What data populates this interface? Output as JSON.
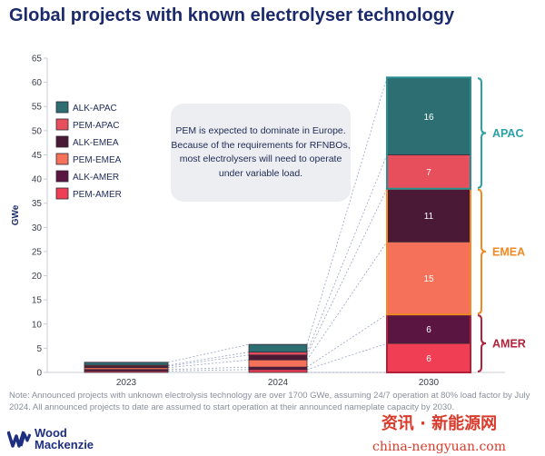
{
  "title": "Global projects with known electrolyser technology",
  "callout": "PEM is expected to dominate in Europe. Because of the requirements for RFNBOs, most electrolysers will need to operate under variable load.",
  "note": "Note: Announced projects with unknown electrolysis technology are over 1700 GWe, assuming 24/7 operation at 80% load factor by July 2024. All announced projects to date are assumed to start operation at their announced nameplate capacity by 2030.",
  "logo": {
    "line1": "Wood",
    "line2": "Mackenzie"
  },
  "watermark": {
    "line1": "资讯 · 新能源网",
    "line2": "china-nengyuan.com"
  },
  "colors": {
    "ALK-APAC": "#2c6e72",
    "PEM-APAC": "#e84f5c",
    "ALK-EMEA": "#4a1935",
    "PEM-EMEA": "#f5715a",
    "ALK-AMER": "#5a1540",
    "PEM-AMER": "#f03f54",
    "bracket_apac": "#2aa0a8",
    "bracket_emea": "#f08a24",
    "bracket_amer": "#b0213a",
    "outline_apac": "#2a8f93",
    "outline_emea": "#f08a24",
    "outline_amer": "#b0213a"
  },
  "chart_data": {
    "type": "bar",
    "stacked": true,
    "categories": [
      "2023",
      "2024",
      "2030"
    ],
    "ylabel": "GWe",
    "ylim": [
      0,
      65
    ],
    "yticks": [
      0,
      5,
      10,
      15,
      20,
      25,
      30,
      35,
      40,
      45,
      50,
      55,
      60,
      65
    ],
    "legend": "top-left",
    "series": [
      {
        "name": "PEM-AMER",
        "values": [
          0.3,
          0.6,
          6
        ]
      },
      {
        "name": "ALK-AMER",
        "values": [
          0.3,
          0.5,
          6
        ]
      },
      {
        "name": "PEM-EMEA",
        "values": [
          0.4,
          1.5,
          15
        ]
      },
      {
        "name": "ALK-EMEA",
        "values": [
          0.3,
          1.0,
          11
        ]
      },
      {
        "name": "PEM-APAC",
        "values": [
          0.2,
          0.6,
          7
        ]
      },
      {
        "name": "ALK-APAC",
        "values": [
          0.6,
          1.6,
          16
        ]
      }
    ],
    "data_labels_2030": [
      "6",
      "6",
      "15",
      "11",
      "7",
      "16"
    ],
    "region_labels": [
      "APAC",
      "EMEA",
      "AMER"
    ],
    "legend_order": [
      "ALK-APAC",
      "PEM-APAC",
      "ALK-EMEA",
      "PEM-EMEA",
      "ALK-AMER",
      "PEM-AMER"
    ]
  }
}
